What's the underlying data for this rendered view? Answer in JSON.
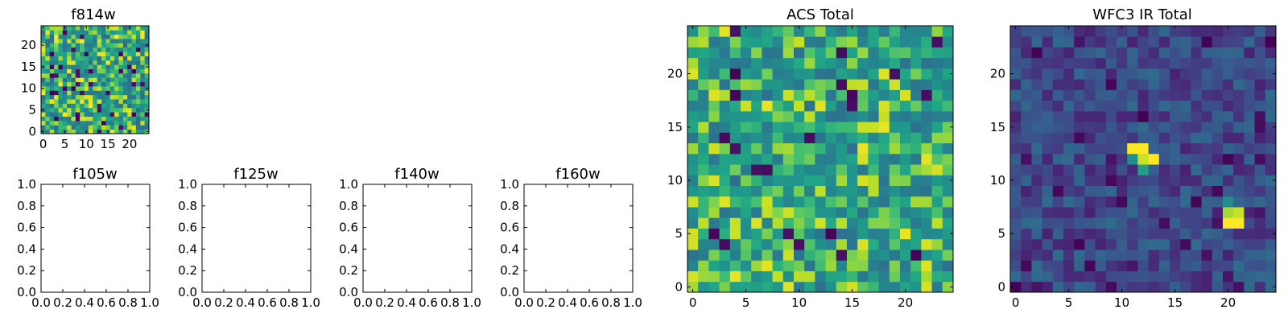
{
  "chart_data": [
    {
      "type": "heatmap",
      "title": "f814w",
      "xticks": [
        0,
        5,
        10,
        15,
        20
      ],
      "yticks": [
        0,
        5,
        10,
        15,
        20
      ],
      "xlim": [
        -0.5,
        24.5
      ],
      "ylim": [
        -0.5,
        24.5
      ],
      "grid_size": [
        25,
        25
      ],
      "colormap": "viridis",
      "seed": 814,
      "base_level": 0.72,
      "noise": 0.28,
      "dark_pixel_fraction": 0.05,
      "bright_spots": []
    },
    {
      "type": "empty",
      "title": "f105w",
      "xticks": [
        "0.0",
        "0.2",
        "0.4",
        "0.6",
        "0.8",
        "1.0"
      ],
      "yticks": [
        "0.0",
        "0.2",
        "0.4",
        "0.6",
        "0.8",
        "1.0"
      ],
      "xlim": [
        0,
        1
      ],
      "ylim": [
        0,
        1
      ]
    },
    {
      "type": "empty",
      "title": "f125w",
      "xticks": [
        "0.0",
        "0.2",
        "0.4",
        "0.6",
        "0.8",
        "1.0"
      ],
      "yticks": [
        "0.0",
        "0.2",
        "0.4",
        "0.6",
        "0.8",
        "1.0"
      ],
      "xlim": [
        0,
        1
      ],
      "ylim": [
        0,
        1
      ]
    },
    {
      "type": "empty",
      "title": "f140w",
      "xticks": [
        "0.0",
        "0.2",
        "0.4",
        "0.6",
        "0.8",
        "1.0"
      ],
      "yticks": [
        "0.0",
        "0.2",
        "0.4",
        "0.6",
        "0.8",
        "1.0"
      ],
      "xlim": [
        0,
        1
      ],
      "ylim": [
        0,
        1
      ]
    },
    {
      "type": "empty",
      "title": "f160w",
      "xticks": [
        "0.0",
        "0.2",
        "0.4",
        "0.6",
        "0.8",
        "1.0"
      ],
      "yticks": [
        "0.0",
        "0.2",
        "0.4",
        "0.6",
        "0.8",
        "1.0"
      ],
      "xlim": [
        0,
        1
      ],
      "ylim": [
        0,
        1
      ]
    },
    {
      "type": "heatmap",
      "title": "ACS Total",
      "xticks": [
        0,
        5,
        10,
        15,
        20
      ],
      "yticks": [
        0,
        5,
        10,
        15,
        20
      ],
      "xlim": [
        -0.5,
        24.5
      ],
      "ylim": [
        -0.5,
        24.5
      ],
      "grid_size": [
        25,
        25
      ],
      "colormap": "viridis",
      "seed": 4242,
      "base_level": 0.72,
      "noise": 0.26,
      "dark_pixel_fraction": 0.04,
      "bright_spots": []
    },
    {
      "type": "heatmap",
      "title": "WFC3 IR Total",
      "xticks": [
        0,
        5,
        10,
        15,
        20
      ],
      "yticks": [
        0,
        5,
        10,
        15,
        20
      ],
      "xlim": [
        -0.5,
        24.5
      ],
      "ylim": [
        -0.5,
        24.5
      ],
      "grid_size": [
        25,
        25
      ],
      "colormap": "viridis",
      "seed": 1607,
      "base_level": 0.28,
      "noise": 0.16,
      "dark_pixel_fraction": 0.06,
      "bright_spots": [
        {
          "x": 11,
          "y": 13,
          "value": 1.0
        },
        {
          "x": 12,
          "y": 13,
          "value": 1.0
        },
        {
          "x": 12,
          "y": 12,
          "value": 0.95
        },
        {
          "x": 13,
          "y": 12,
          "value": 1.0
        },
        {
          "x": 11,
          "y": 12,
          "value": 0.62
        },
        {
          "x": 12,
          "y": 11,
          "value": 0.7
        },
        {
          "x": 20,
          "y": 6,
          "value": 1.0
        },
        {
          "x": 21,
          "y": 6,
          "value": 1.0
        },
        {
          "x": 20,
          "y": 7,
          "value": 0.92
        },
        {
          "x": 21,
          "y": 7,
          "value": 0.95
        },
        {
          "x": 20,
          "y": 8,
          "value": 0.6
        }
      ]
    }
  ]
}
